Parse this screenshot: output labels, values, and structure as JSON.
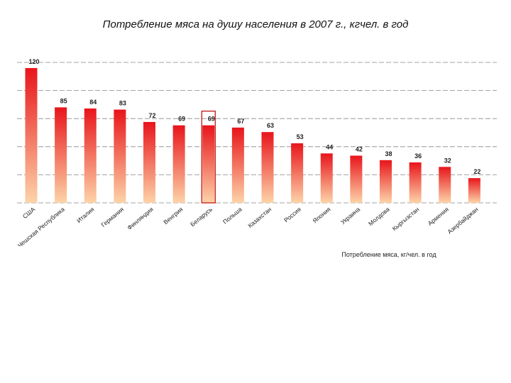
{
  "chart_data": {
    "type": "bar",
    "title": "Потребление мяса на душу населения в 2007 г., кгчел. в год",
    "xlabel": "Потребление мяса, кг/чел. в год",
    "ylabel": "",
    "ylim": [
      0,
      125
    ],
    "grid": true,
    "gridline_values": [
      0,
      25,
      50,
      75,
      100,
      125
    ],
    "categories": [
      "США",
      "Чешская Республика",
      "Италия",
      "Германия",
      "Финляндия",
      "Венгрия",
      "Беларусь",
      "Польша",
      "Казахстан",
      "Россия",
      "Япония",
      "Украина",
      "Молдова",
      "Кыргызстан",
      "Армения",
      "Азербайджан"
    ],
    "values": [
      120,
      85,
      84,
      83,
      72,
      69,
      69,
      67,
      63,
      53,
      44,
      42,
      38,
      36,
      32,
      22
    ],
    "value_labels": [
      "120",
      "85",
      "84",
      "83",
      "72",
      "69",
      "69",
      "67",
      "63",
      "53",
      "44",
      "42",
      "38",
      "36",
      "32",
      "22"
    ],
    "highlighted_category": "Беларусь",
    "colors": {
      "bar_top": "#e8151b",
      "bar_bottom": "#fdd3a8",
      "highlight_border": "#c00000",
      "grid": "#888888"
    }
  }
}
